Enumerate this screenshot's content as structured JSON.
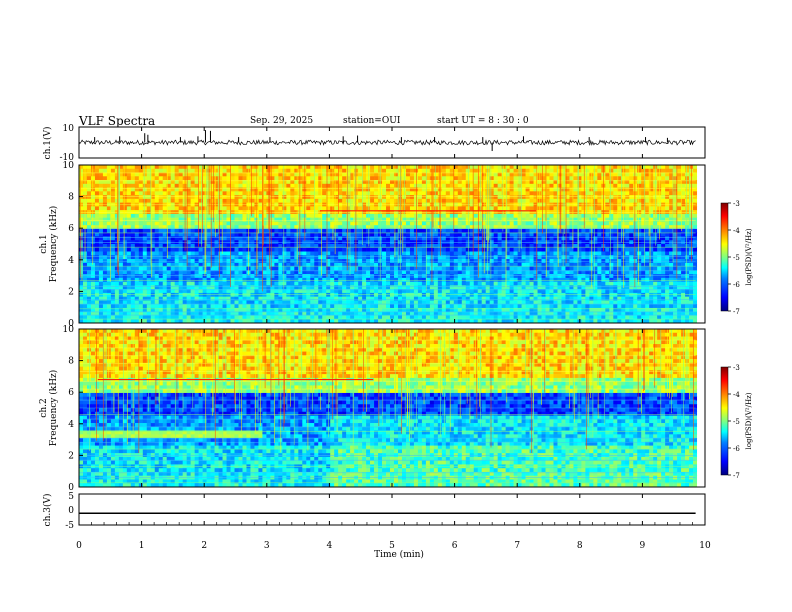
{
  "header": {
    "title": "VLF Spectra",
    "date": "Sep. 29, 2025",
    "station": "station=OUI",
    "start": "start  UT =   8  : 30 : 0"
  },
  "chart_data": [
    {
      "type": "line",
      "name": "ch1-waveform",
      "ylabel": "ch.1(V)",
      "ylim": [
        -10,
        10
      ],
      "yticks": [
        10,
        -10
      ],
      "xlim": [
        0,
        10
      ],
      "baseline": 0,
      "noise_amplitude": 1.5,
      "spikes": [
        {
          "x": 0.25,
          "y": 3.5
        },
        {
          "x": 0.65,
          "y": 4.0
        },
        {
          "x": 1.05,
          "y": 6.0
        },
        {
          "x": 1.1,
          "y": 5.0
        },
        {
          "x": 1.62,
          "y": 3.5
        },
        {
          "x": 1.9,
          "y": 4.0
        },
        {
          "x": 2.02,
          "y": 8.0
        },
        {
          "x": 2.1,
          "y": 7.5
        },
        {
          "x": 2.55,
          "y": 3.5
        },
        {
          "x": 3.05,
          "y": 3.5
        },
        {
          "x": 4.22,
          "y": 4.0
        },
        {
          "x": 4.45,
          "y": 4.5
        },
        {
          "x": 5.15,
          "y": 3.5
        },
        {
          "x": 5.68,
          "y": 3.5
        },
        {
          "x": 6.45,
          "y": 3.5
        },
        {
          "x": 6.6,
          "y": -5.5
        },
        {
          "x": 7.1,
          "y": 4.0
        },
        {
          "x": 8.15,
          "y": 3.5
        },
        {
          "x": 9.05,
          "y": 3.5
        },
        {
          "x": 9.4,
          "y": 3.0
        }
      ]
    },
    {
      "type": "heatmap",
      "name": "ch1-spectrogram",
      "ylabel": "ch.1\nFrequency (kHz)",
      "ylim": [
        0,
        10
      ],
      "yticks": [
        0,
        2,
        4,
        6,
        8,
        10
      ],
      "xlim": [
        0,
        10
      ],
      "colorbar": {
        "label": "log(PSD)(V²/Hz)",
        "ticks": [
          -3,
          -4,
          -5,
          -6,
          -7
        ],
        "range": [
          -7,
          -3
        ]
      },
      "lines_khz": [
        0.25,
        0.5,
        0.7,
        0.9,
        1.2,
        1.5,
        1.8,
        2.1,
        2.3,
        2.7,
        3.0,
        3.3,
        3.6,
        3.9,
        4.2,
        4.8,
        5.1,
        5.4,
        5.7,
        6.0,
        6.5,
        7.0,
        7.5,
        8.0,
        8.5,
        9.0,
        9.5
      ],
      "red_line": {
        "freq_khz": 7.1,
        "t_start": 3.85,
        "t_end": 7.3
      },
      "transition_min": null
    },
    {
      "type": "heatmap",
      "name": "ch2-spectrogram",
      "ylabel": "ch.2\nFrequency (kHz)",
      "ylim": [
        0,
        10
      ],
      "yticks": [
        0,
        2,
        4,
        6,
        8,
        10
      ],
      "xlim": [
        0,
        10
      ],
      "colorbar": {
        "label": "log(PSD)(V²/Hz)",
        "ticks": [
          -3,
          -4,
          -5,
          -6,
          -7
        ],
        "range": [
          -7,
          -3
        ]
      },
      "lines_khz": [
        0.3,
        0.6,
        0.9,
        1.3,
        1.7,
        2.0,
        2.4,
        2.8,
        3.1,
        3.5,
        3.8,
        4.3,
        4.6,
        5.0,
        5.5,
        6.2,
        6.7,
        7.3,
        7.8,
        8.3,
        8.8,
        9.3
      ],
      "red_line": {
        "freq_khz": 6.8,
        "t_start": 0.3,
        "t_end": 4.7
      },
      "band_khz": [
        3.0,
        3.5
      ],
      "band_end_min": 2.95,
      "transition_min": 4.0
    },
    {
      "type": "line",
      "name": "ch3-waveform",
      "ylabel": "ch.3(V)",
      "ylim": [
        -5,
        5
      ],
      "yticks": [
        5,
        0,
        -5
      ],
      "xlim": [
        0,
        10
      ],
      "value_v": -1.2,
      "data_end_min": 9.85
    }
  ],
  "x_axis": {
    "label": "Time (min)",
    "ticks": [
      0,
      1,
      2,
      3,
      4,
      5,
      6,
      7,
      8,
      9,
      10
    ]
  },
  "colors": {
    "cmap": [
      "#00007f",
      "#0000ff",
      "#0080ff",
      "#00ffff",
      "#80ff80",
      "#ffff00",
      "#ff8000",
      "#ff0000",
      "#7f0000"
    ],
    "axes": "#000000"
  }
}
